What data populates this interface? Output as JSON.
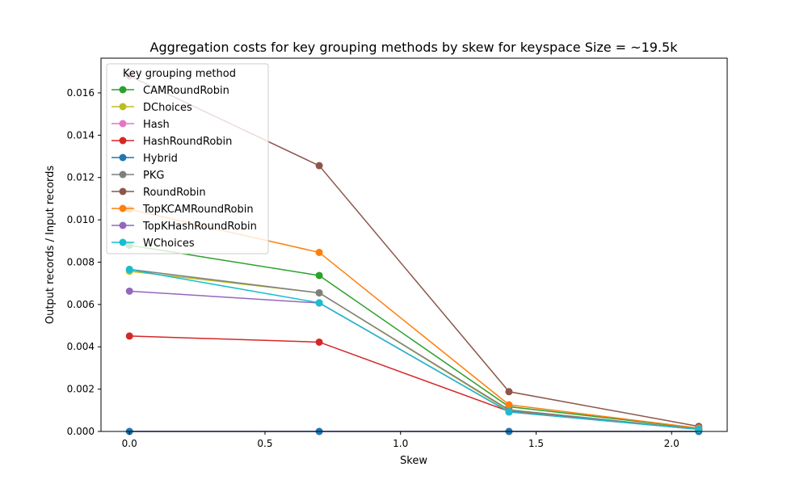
{
  "chart_data": {
    "type": "line",
    "title": "Aggregation costs for key grouping methods by skew for keyspace Size = ~19.5k",
    "xlabel": "Skew",
    "ylabel": "Output records / Input records",
    "xlim": [
      -0.105,
      2.205
    ],
    "ylim": [
      0,
      0.01764
    ],
    "xticks": [
      0.0,
      0.5,
      1.0,
      1.5,
      2.0
    ],
    "xtick_labels": [
      "0.0",
      "0.5",
      "1.0",
      "1.5",
      "2.0"
    ],
    "yticks": [
      0,
      0.002,
      0.004,
      0.006,
      0.008,
      0.01,
      0.012,
      0.014,
      0.016
    ],
    "ytick_labels": [
      "0.000",
      "0.002",
      "0.004",
      "0.006",
      "0.008",
      "0.010",
      "0.012",
      "0.014",
      "0.016"
    ],
    "grid": false,
    "legend_title": "Key grouping method",
    "legend_position": "upper-left",
    "x": [
      0.0,
      0.7,
      1.4,
      2.1
    ],
    "series": [
      {
        "name": "CAMRoundRobin",
        "color": "#2ca02c",
        "values": [
          0.0088,
          0.00737,
          0.00117,
          0.00015
        ]
      },
      {
        "name": "DChoices",
        "color": "#bcbd22",
        "values": [
          0.00757,
          0.00655,
          0.00098,
          0.0001
        ]
      },
      {
        "name": "Hash",
        "color": "#e377c2",
        "values": [
          0.0,
          0.0,
          0.0,
          0.0
        ]
      },
      {
        "name": "HashRoundRobin",
        "color": "#d62728",
        "values": [
          0.00451,
          0.00422,
          0.00095,
          0.0001
        ]
      },
      {
        "name": "Hybrid",
        "color": "#1f77b4",
        "values": [
          0.0,
          0.0,
          0.0,
          0.0
        ]
      },
      {
        "name": "PKG",
        "color": "#7f7f7f",
        "values": [
          0.00766,
          0.00655,
          0.00102,
          0.00011
        ]
      },
      {
        "name": "RoundRobin",
        "color": "#8c564b",
        "values": [
          0.0168,
          0.01256,
          0.00188,
          0.00024
        ]
      },
      {
        "name": "TopKCAMRoundRobin",
        "color": "#ff7f0e",
        "values": [
          0.0105,
          0.00846,
          0.00126,
          0.00016
        ]
      },
      {
        "name": "TopKHashRoundRobin",
        "color": "#9467bd",
        "values": [
          0.00663,
          0.00607,
          0.00092,
          0.0001
        ]
      },
      {
        "name": "WChoices",
        "color": "#17becf",
        "values": [
          0.00765,
          0.00608,
          0.00093,
          0.0001
        ]
      }
    ]
  }
}
